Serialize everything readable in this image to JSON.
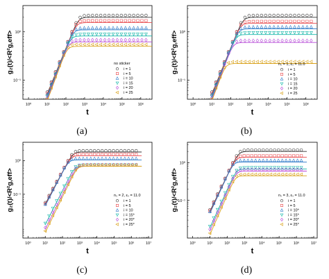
{
  "captions": [
    "(a)",
    "(b)",
    "(c)",
    "(d)"
  ],
  "colors": [
    "#333333",
    "#e8474b",
    "#2a78c7",
    "#12b5a8",
    "#b547d6",
    "#d9a21b"
  ],
  "chart_data": [
    {
      "type": "scatter",
      "xlabel": "t",
      "ylabel": "g₂(t)/<R²g,eff>",
      "xscale": "log",
      "yscale": "log",
      "xlim": [
        0.5,
        4000000
      ],
      "ylim": [
        0.04,
        3.5
      ],
      "xticks": [
        "10⁰",
        "10¹",
        "10²",
        "10³",
        "10⁴",
        "10⁵",
        "10⁶"
      ],
      "yticks": [
        "10⁻¹",
        "10⁰"
      ],
      "legend_title": "no sticker",
      "legend_position": "lower-right",
      "series": [
        {
          "name": "i = 1",
          "marker": "circle",
          "plateau": 2.0,
          "values": [
            [
              20,
              0.1
            ],
            [
              100,
              0.35
            ],
            [
              1000,
              1.4
            ],
            [
              10000,
              2.0
            ],
            [
              100000,
              2.0
            ],
            [
              1000000,
              2.0
            ]
          ]
        },
        {
          "name": "i = 5",
          "marker": "square",
          "plateau": 1.55,
          "values": [
            [
              20,
              0.07
            ],
            [
              100,
              0.3
            ],
            [
              1000,
              1.2
            ],
            [
              10000,
              1.55
            ],
            [
              1000000,
              1.55
            ]
          ]
        },
        {
          "name": "i = 10",
          "marker": "triangle-up",
          "plateau": 1.1,
          "values": [
            [
              20,
              0.07
            ],
            [
              100,
              0.28
            ],
            [
              1000,
              0.95
            ],
            [
              10000,
              1.1
            ],
            [
              1000000,
              1.1
            ]
          ]
        },
        {
          "name": "i = 15",
          "marker": "triangle-down",
          "plateau": 0.82,
          "values": [
            [
              20,
              0.07
            ],
            [
              100,
              0.27
            ],
            [
              1000,
              0.75
            ],
            [
              10000,
              0.82
            ],
            [
              1000000,
              0.82
            ]
          ]
        },
        {
          "name": "i = 20",
          "marker": "diamond",
          "plateau": 0.62,
          "values": [
            [
              20,
              0.07
            ],
            [
              100,
              0.26
            ],
            [
              1000,
              0.6
            ],
            [
              10000,
              0.62
            ],
            [
              1000000,
              0.62
            ]
          ]
        },
        {
          "name": "i = 25",
          "marker": "triangle-left",
          "plateau": 0.5,
          "values": [
            [
              20,
              0.065
            ],
            [
              100,
              0.25
            ],
            [
              1000,
              0.49
            ],
            [
              10000,
              0.5
            ],
            [
              1000000,
              0.5
            ]
          ]
        }
      ]
    },
    {
      "type": "scatter",
      "xlabel": "t",
      "ylabel": "g₂(t)/<R²g,eff>",
      "xscale": "log",
      "yscale": "log",
      "xlim": [
        0.5,
        4000000
      ],
      "ylim": [
        0.04,
        3.5
      ],
      "xticks": [
        "10⁰",
        "10¹",
        "10²",
        "10³",
        "10⁴",
        "10⁵",
        "10⁶"
      ],
      "yticks": [
        "10⁻¹",
        "10⁰"
      ],
      "legend_title": "nₛ = 1, εₛ = 11.0",
      "legend_position": "lower-right",
      "series": [
        {
          "name": "i = 1",
          "marker": "circle",
          "plateau": 2.0
        },
        {
          "name": "i = 5",
          "marker": "square",
          "plateau": 1.5
        },
        {
          "name": "i = 10",
          "marker": "triangle-up",
          "plateau": 1.15
        },
        {
          "name": "i = 15",
          "marker": "triangle-down",
          "plateau": 0.88
        },
        {
          "name": "i = 20",
          "marker": "diamond",
          "plateau": 0.6
        },
        {
          "name": "i = 25",
          "marker": "triangle-left",
          "plateau": 0.22
        }
      ]
    },
    {
      "type": "scatter",
      "xlabel": "t",
      "ylabel": "g₂(t)/<R²g,eff>",
      "xscale": "log",
      "yscale": "log",
      "xlim": [
        0.5,
        4000000
      ],
      "ylim": [
        0.005,
        3.5
      ],
      "xticks": [
        "10⁰",
        "10¹",
        "10²",
        "10³",
        "10⁴",
        "10⁵",
        "10⁶",
        "10⁷"
      ],
      "yticks": [
        "10⁻¹",
        "10⁰"
      ],
      "legend_title": "nₛ = 2, εₛ = 11.0",
      "legend_position": "lower-right",
      "series": [
        {
          "name": "i = 1",
          "marker": "circle",
          "plateau": 1.8
        },
        {
          "name": "i = 5",
          "marker": "square",
          "plateau": 1.4
        },
        {
          "name": "i = 10",
          "marker": "triangle-up",
          "plateau": 1.05
        },
        {
          "name": "i = 15*",
          "marker": "triangle-down",
          "plateau": 0.68
        },
        {
          "name": "i = 20*",
          "marker": "diamond",
          "plateau": 0.68
        },
        {
          "name": "i = 25*",
          "marker": "triangle-left",
          "plateau": 0.68
        }
      ]
    },
    {
      "type": "scatter",
      "xlabel": "t",
      "ylabel": "g₂(t)/<R²g,eff>",
      "xscale": "log",
      "yscale": "log",
      "xlim": [
        0.5,
        4000000
      ],
      "ylim": [
        0.01,
        3.5
      ],
      "xticks": [
        "10⁰",
        "10¹",
        "10²",
        "10³",
        "10⁴",
        "10⁵",
        "10⁶",
        "10⁷"
      ],
      "yticks": [
        "10⁻¹",
        "10⁰"
      ],
      "legend_title": "nₛ = 3, εₛ = 11.0",
      "legend_position": "lower-right",
      "series": [
        {
          "name": "i = 1",
          "marker": "circle",
          "plateau": 2.0
        },
        {
          "name": "i = 5",
          "marker": "square",
          "plateau": 1.4
        },
        {
          "name": "i = 10*",
          "marker": "triangle-up",
          "plateau": 1.05
        },
        {
          "name": "i = 15*",
          "marker": "triangle-down",
          "plateau": 0.68
        },
        {
          "name": "i = 20*",
          "marker": "diamond",
          "plateau": 0.6
        },
        {
          "name": "i = 25*",
          "marker": "triangle-left",
          "plateau": 0.45
        }
      ]
    }
  ]
}
